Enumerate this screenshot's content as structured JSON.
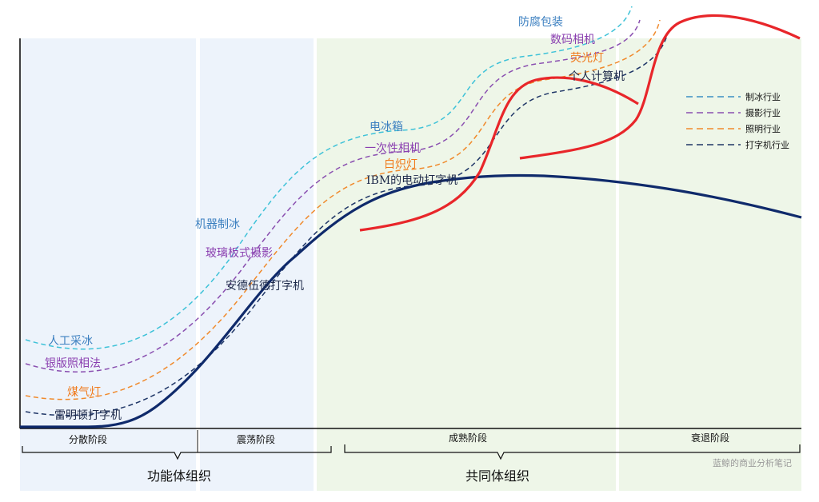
{
  "stages": [
    {
      "label": "分散阶段"
    },
    {
      "label": "震荡阶段"
    },
    {
      "label": "成熟阶段"
    },
    {
      "label": "衰退阶段"
    }
  ],
  "groups": [
    {
      "label": "功能体组织"
    },
    {
      "label": "共同体组织"
    }
  ],
  "legend": [
    {
      "label": "制冰行业",
      "color": "#3b8fc2"
    },
    {
      "label": "摄影行业",
      "color": "#8a4fb0"
    },
    {
      "label": "照明行业",
      "color": "#f08a2c"
    },
    {
      "label": "打字机行业",
      "color": "#1e3566"
    }
  ],
  "curves": {
    "ice": {
      "color": "#3ec2d8",
      "label_color": "#3b7fc0",
      "labels": [
        "人工采冰",
        "机器制冰",
        "电冰箱",
        "防腐包装"
      ]
    },
    "photo": {
      "color": "#8a4fb0",
      "label_color": "#8a3fb0",
      "labels": [
        "银版照相法",
        "玻璃板式摄影",
        "一次性相机",
        "数码相机"
      ]
    },
    "light": {
      "color": "#f08a2c",
      "label_color": "#f07a1c",
      "labels": [
        "煤气灯",
        "白炽灯",
        "荧光灯"
      ]
    },
    "type": {
      "color": "#1e3566",
      "label_color": "#1e2a4a",
      "labels": [
        "雷明顿打字机",
        "安德伍德打字机",
        "IBM的电动打字机",
        "个人计算机"
      ]
    }
  },
  "colors": {
    "main_curve": "#0f2a6b",
    "red_curve": "#e8262a",
    "band_blue": "#edf3fb",
    "band_green": "#eef6e8"
  },
  "watermark": "蓝鲸的商业分析笔记"
}
